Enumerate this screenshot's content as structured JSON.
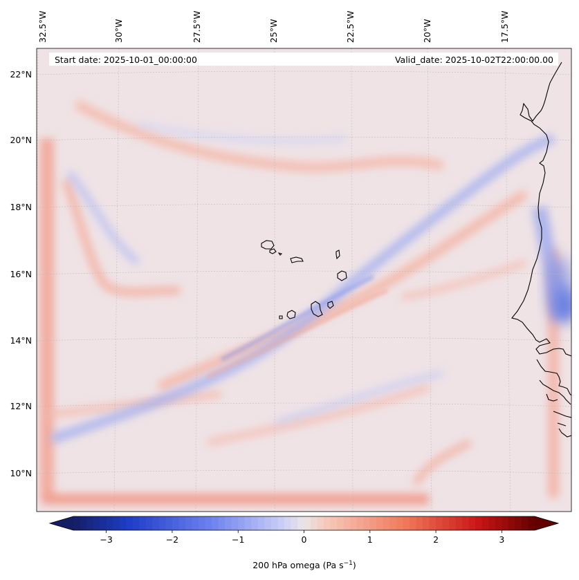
{
  "map": {
    "start_date": "Start date: 2025-10-01_00:00:00",
    "valid_date": "Valid_date: 2025-10-02T22:00:00.00",
    "lon_labels": [
      "32.5°W",
      "30°W",
      "27.5°W",
      "25°W",
      "22.5°W",
      "20°W",
      "17.5°W"
    ],
    "lat_labels": [
      "22°N",
      "20°N",
      "18°N",
      "16°N",
      "14°N",
      "12°N",
      "10°N"
    ],
    "field_colors": {
      "background": "#efe3e6",
      "positive": "#f2a08a",
      "negative": "#9ea9ee",
      "strong_negative": "#4a64d8",
      "coastline": "#000000"
    }
  },
  "colorbar": {
    "label_prefix": "200 hPa omega (Pa s",
    "label_exponent": "−1",
    "label_suffix": ")",
    "ticks": [
      {
        "value": -3,
        "label": "−3"
      },
      {
        "value": -2,
        "label": "−2"
      },
      {
        "value": -1,
        "label": "−1"
      },
      {
        "value": 0,
        "label": "0"
      },
      {
        "value": 1,
        "label": "1"
      },
      {
        "value": 2,
        "label": "2"
      },
      {
        "value": 3,
        "label": "3"
      }
    ],
    "range": [
      -3.5,
      3.5
    ],
    "extend": "both",
    "cmap": "coolwarm"
  }
}
